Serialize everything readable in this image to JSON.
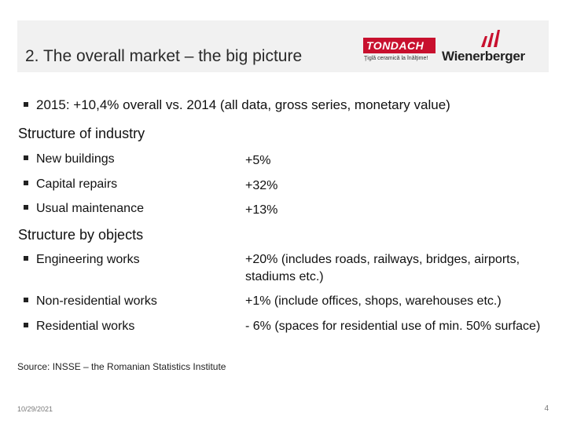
{
  "header": {
    "title": "2. The overall market – the big picture",
    "logos": {
      "tondach": "TONDACH",
      "tondach_tagline": "Ţiglă ceramică la înălţime!",
      "wienerberger": "Wienerberger",
      "brand_red": "#c8102e"
    }
  },
  "summary_bullet": "2015: +10,4% overall vs. 2014 (all data, gross series, monetary value)",
  "structure_of_industry": {
    "heading": "Structure of industry",
    "items": [
      {
        "label": "New buildings",
        "value": "+5%"
      },
      {
        "label": "Capital repairs",
        "value": "+32%"
      },
      {
        "label": "Usual maintenance",
        "value": "+13%"
      }
    ]
  },
  "structure_by_objects": {
    "heading": "Structure by objects",
    "items": [
      {
        "label": "Engineering works",
        "value": "+20% (includes roads, railways, bridges, airports, stadiums etc.)"
      },
      {
        "label": "Non-residential works",
        "value": "+1% (include offices, shops, warehouses etc.)"
      },
      {
        "label": "Residential works",
        "value": "- 6% (spaces for residential use of min. 50% surface)"
      }
    ]
  },
  "source": "Source: INSSE – the Romanian Statistics Institute",
  "footer": {
    "date": "10/29/2021",
    "page": "4"
  }
}
